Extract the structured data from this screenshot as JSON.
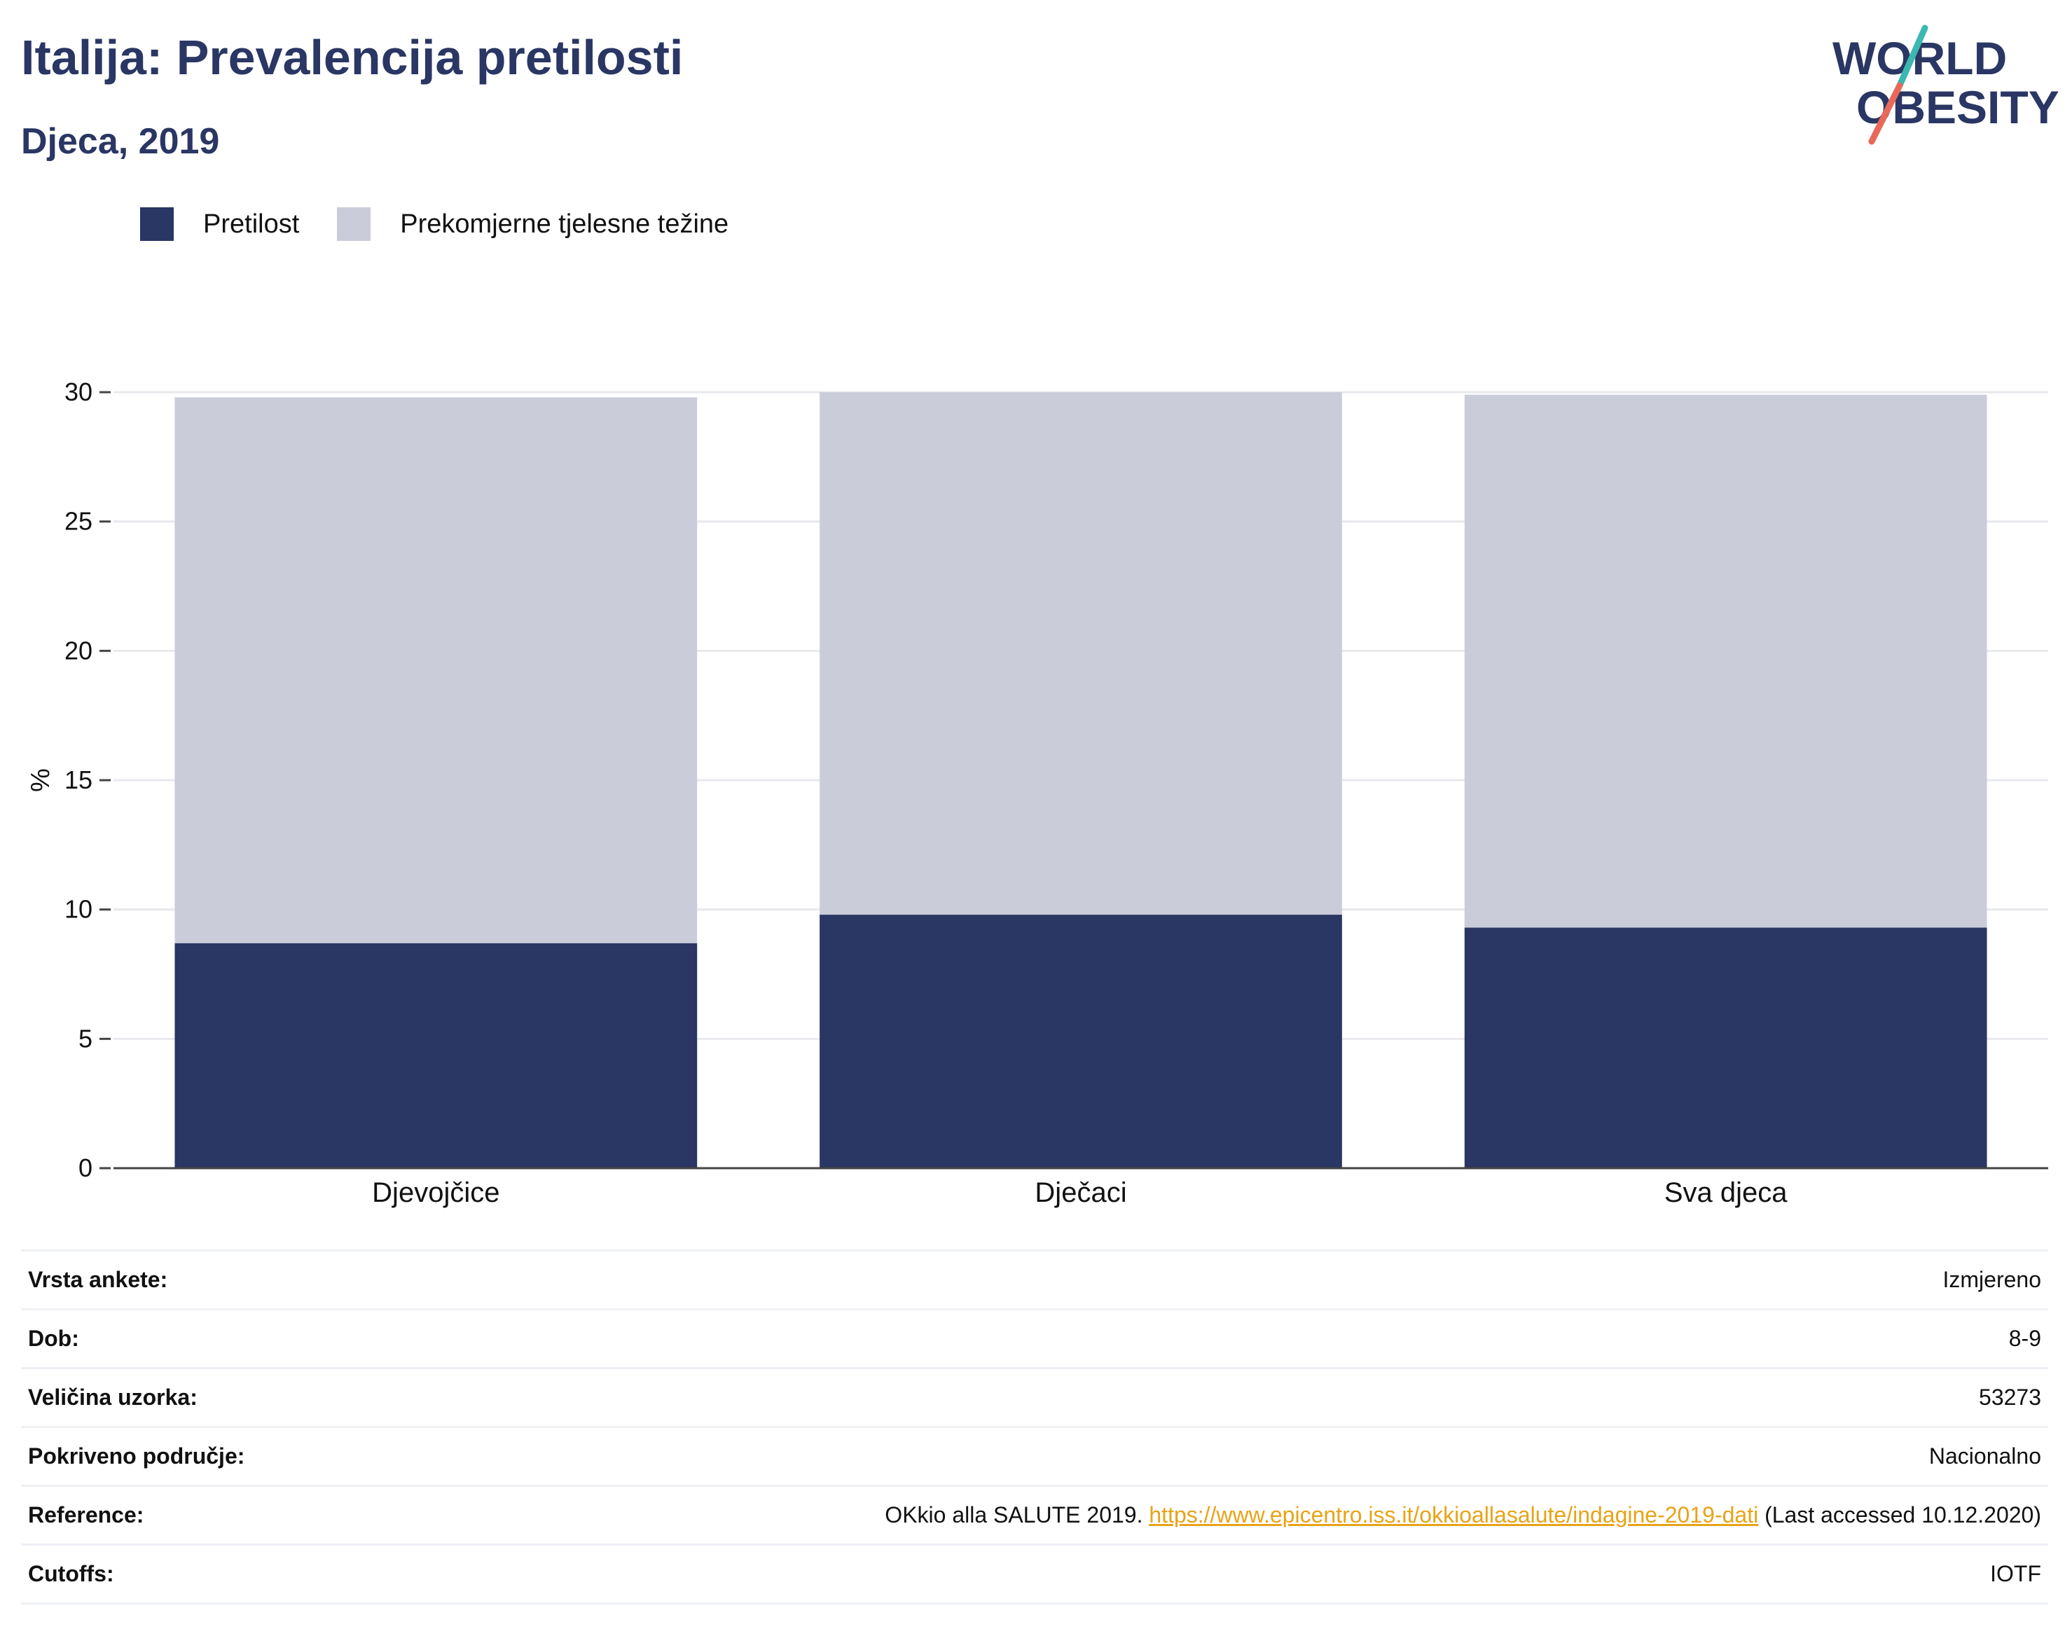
{
  "header": {
    "title": "Italija: Prevalencija pretilosti",
    "subtitle": "Djeca, 2019"
  },
  "logo": {
    "line1": "WORLD",
    "line2": "OBESITY",
    "colors": {
      "text": "#2a3663",
      "slash_top": "#3bb8b0",
      "slash_bottom": "#e8695a"
    }
  },
  "colors": {
    "obesity": "#2a3663",
    "overweight": "#cacdd9",
    "grid": "#e8e9ee",
    "axis": "#444444",
    "link": "#e8a317"
  },
  "chart_data": {
    "type": "bar",
    "stacked": true,
    "categories": [
      "Djevojčice",
      "Dječaci",
      "Sva djeca"
    ],
    "series": [
      {
        "name": "Pretilost",
        "values": [
          8.7,
          9.8,
          9.3
        ],
        "color": "#2a3663"
      },
      {
        "name": "Prekomjerne tjelesne težine",
        "values": [
          21.1,
          20.2,
          20.6
        ],
        "color": "#cacdd9"
      }
    ],
    "ylabel": "%",
    "ylim": [
      0,
      30
    ],
    "yticks": [
      0,
      5,
      10,
      15,
      20,
      25,
      30
    ],
    "grid": true,
    "legend_position": "top-left"
  },
  "info_table": [
    {
      "label": "Vrsta ankete:",
      "value": "Izmjereno"
    },
    {
      "label": "Dob:",
      "value": "8-9"
    },
    {
      "label": "Veličina uzorka:",
      "value": "53273"
    },
    {
      "label": "Pokriveno područje:",
      "value": "Nacionalno"
    },
    {
      "label": "Reference:",
      "value_prefix": "OKkio alla SALUTE 2019. ",
      "link": "https://www.epicentro.iss.it/okkioallasalute/indagine-2019-dati",
      "value_suffix": " (Last accessed 10.12.2020)"
    },
    {
      "label": "Cutoffs:",
      "value": "IOTF"
    }
  ]
}
